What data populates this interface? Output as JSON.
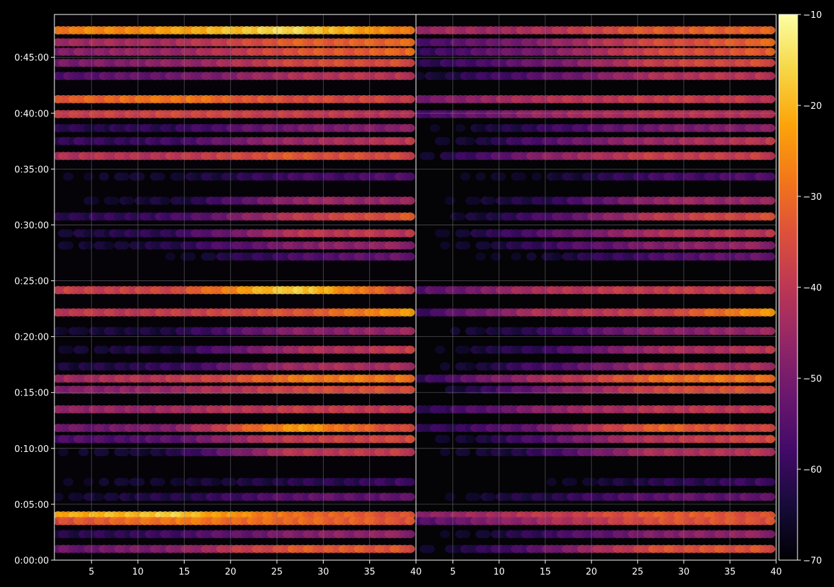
{
  "chart_data": {
    "type": "heatmap",
    "title": "",
    "panels": [
      {
        "name": "",
        "xlim": [
          1,
          40
        ]
      },
      {
        "name": "",
        "xlim": [
          1,
          40
        ]
      }
    ],
    "xticks": [
      "5",
      "10",
      "15",
      "20",
      "25",
      "30",
      "35",
      "40"
    ],
    "x_edge_label": "40",
    "yticks": [
      "0:00:00",
      "0:05:00",
      "0:10:00",
      "0:15:00",
      "0:20:00",
      "0:25:00",
      "0:30:00",
      "0:35:00",
      "0:40:00",
      "0:45:00"
    ],
    "ylim_seconds": [
      0,
      2930
    ],
    "colorbar": {
      "colormap": "inferno",
      "range": [
        -70,
        -10
      ],
      "ticks": [
        "−10",
        "−20",
        "−30",
        "−40",
        "−50",
        "−60",
        "−70"
      ]
    },
    "grid": true,
    "colors": {
      "background": "#000000",
      "axis": "#ffffff",
      "grid": "#808080"
    },
    "bands": [
      {
        "t_seconds": 2845,
        "level": [
          -28,
          -22,
          -15,
          -28
        ],
        "level_b": [
          -45,
          -42,
          -32,
          -30
        ]
      },
      {
        "t_seconds": 2780,
        "level": [
          -45,
          -42,
          -32,
          -30
        ],
        "level_b": [
          -58,
          -48,
          -36,
          -30
        ]
      },
      {
        "t_seconds": 2730,
        "level": [
          -48,
          -45,
          -34,
          -30
        ],
        "level_b": [
          -60,
          -50,
          -36,
          -32
        ]
      },
      {
        "t_seconds": 2670,
        "level": [
          -50,
          -47,
          -36,
          -34
        ],
        "level_b": [
          -62,
          -52,
          -38,
          -34
        ]
      },
      {
        "t_seconds": 2600,
        "level": [
          -55,
          -52,
          -42,
          -40
        ],
        "level_b": [
          -65,
          -55,
          -42,
          -40
        ]
      },
      {
        "t_seconds": 2475,
        "level": [
          -32,
          -28,
          -35,
          -38
        ],
        "level_b": [
          -50,
          -42,
          -38,
          -40
        ]
      },
      {
        "t_seconds": 2395,
        "level": [
          -38,
          -36,
          -38,
          -42
        ],
        "level_b": [
          -58,
          -46,
          -40,
          -42
        ]
      },
      {
        "t_seconds": 2320,
        "level": [
          -62,
          -60,
          -50,
          -48
        ],
        "level_b": [
          -70,
          -60,
          -50,
          -48
        ]
      },
      {
        "t_seconds": 2250,
        "level": [
          -60,
          -58,
          -44,
          -40
        ],
        "level_b": [
          -70,
          -56,
          -44,
          -40
        ]
      },
      {
        "t_seconds": 2170,
        "level": [
          -42,
          -40,
          -33,
          -36
        ],
        "level_b": [
          -68,
          -48,
          -38,
          -38
        ]
      },
      {
        "t_seconds": 2060,
        "level": [
          -68,
          -65,
          -58,
          -55
        ],
        "level_b": [
          -70,
          -66,
          -58,
          -55
        ]
      },
      {
        "t_seconds": 1930,
        "level": [
          -68,
          -64,
          -46,
          -44
        ],
        "level_b": [
          -70,
          -62,
          -46,
          -44
        ]
      },
      {
        "t_seconds": 1845,
        "level": [
          -62,
          -58,
          -40,
          -32
        ],
        "level_b": [
          -70,
          -58,
          -40,
          -34
        ]
      },
      {
        "t_seconds": 1755,
        "level": [
          -64,
          -60,
          -40,
          -40
        ],
        "level_b": [
          -70,
          -56,
          -42,
          -40
        ]
      },
      {
        "t_seconds": 1690,
        "level": [
          -66,
          -62,
          -48,
          -46
        ],
        "level_b": [
          -70,
          -60,
          -48,
          -46
        ]
      },
      {
        "t_seconds": 1630,
        "level": [
          -70,
          -68,
          -56,
          -52
        ],
        "level_b": [
          -70,
          -66,
          -56,
          -52
        ]
      },
      {
        "t_seconds": 1450,
        "level": [
          -38,
          -36,
          -15,
          -38
        ],
        "level_b": [
          -56,
          -42,
          -38,
          -38
        ]
      },
      {
        "t_seconds": 1330,
        "level": [
          -40,
          -38,
          -34,
          -22
        ],
        "level_b": [
          -60,
          -42,
          -38,
          -22
        ]
      },
      {
        "t_seconds": 1230,
        "level": [
          -66,
          -62,
          -48,
          -45
        ],
        "level_b": [
          -70,
          -60,
          -48,
          -45
        ]
      },
      {
        "t_seconds": 1130,
        "level": [
          -66,
          -62,
          -44,
          -38
        ],
        "level_b": [
          -70,
          -60,
          -44,
          -40
        ]
      },
      {
        "t_seconds": 1040,
        "level": [
          -64,
          -60,
          -44,
          -42
        ],
        "level_b": [
          -70,
          -58,
          -44,
          -42
        ]
      },
      {
        "t_seconds": 975,
        "level": [
          -44,
          -40,
          -28,
          -28
        ],
        "level_b": [
          -60,
          -44,
          -30,
          -28
        ]
      },
      {
        "t_seconds": 915,
        "level": [
          -48,
          -45,
          -36,
          -34
        ],
        "level_b": [
          -70,
          -52,
          -36,
          -34
        ]
      },
      {
        "t_seconds": 810,
        "level": [
          -46,
          -44,
          -38,
          -40
        ],
        "level_b": [
          -62,
          -48,
          -40,
          -40
        ]
      },
      {
        "t_seconds": 710,
        "level": [
          -52,
          -48,
          -22,
          -38
        ],
        "level_b": [
          -62,
          -52,
          -30,
          -38
        ]
      },
      {
        "t_seconds": 650,
        "level": [
          -56,
          -54,
          -38,
          -36
        ],
        "level_b": [
          -70,
          -56,
          -40,
          -36
        ]
      },
      {
        "t_seconds": 580,
        "level": [
          -68,
          -62,
          -40,
          -38
        ],
        "level_b": [
          -70,
          -60,
          -42,
          -40
        ]
      },
      {
        "t_seconds": 420,
        "level": [
          -68,
          -65,
          -62,
          -58
        ],
        "level_b": [
          -70,
          -68,
          -62,
          -58
        ]
      },
      {
        "t_seconds": 340,
        "level": [
          -66,
          -62,
          -54,
          -52
        ],
        "level_b": [
          -70,
          -62,
          -54,
          -52
        ]
      },
      {
        "t_seconds": 240,
        "level": [
          -22,
          -17,
          -30,
          -34
        ],
        "level_b": [
          -48,
          -40,
          -32,
          -34
        ]
      },
      {
        "t_seconds": 210,
        "level": [
          -34,
          -28,
          -30,
          -34
        ],
        "level_b": [
          -55,
          -45,
          -34,
          -34
        ]
      },
      {
        "t_seconds": 140,
        "level": [
          -62,
          -58,
          -48,
          -46
        ],
        "level_b": [
          -70,
          -60,
          -48,
          -46
        ]
      },
      {
        "t_seconds": 60,
        "level": [
          -52,
          -48,
          -32,
          -34
        ],
        "level_b": [
          -68,
          -54,
          -34,
          -34
        ]
      }
    ]
  }
}
